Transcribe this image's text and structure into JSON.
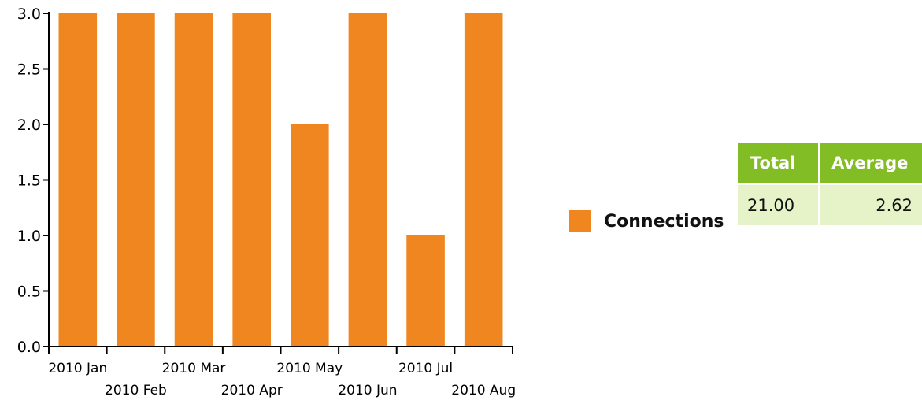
{
  "chart_data": {
    "type": "bar",
    "categories": [
      "2010 Jan",
      "2010 Feb",
      "2010 Mar",
      "2010 Apr",
      "2010 May",
      "2010 Jun",
      "2010 Jul",
      "2010 Aug"
    ],
    "series": [
      {
        "name": "Connections",
        "values": [
          3,
          3,
          3,
          3,
          2,
          3,
          1,
          3
        ]
      }
    ],
    "yticks": [
      "0.0",
      "0.5",
      "1.0",
      "1.5",
      "2.0",
      "2.5",
      "3.0"
    ],
    "ylim": [
      0,
      3
    ],
    "grid": false,
    "legend_position": "right",
    "bar_color": "#f0861f"
  },
  "legend": {
    "label": "Connections",
    "color": "#f0861f"
  },
  "summary_table": {
    "headers": [
      "Total",
      "Average"
    ],
    "rows": [
      {
        "total": "21.00",
        "average": "2.62"
      }
    ],
    "header_color": "#82bd26",
    "cell_color": "#e6f2c7"
  }
}
